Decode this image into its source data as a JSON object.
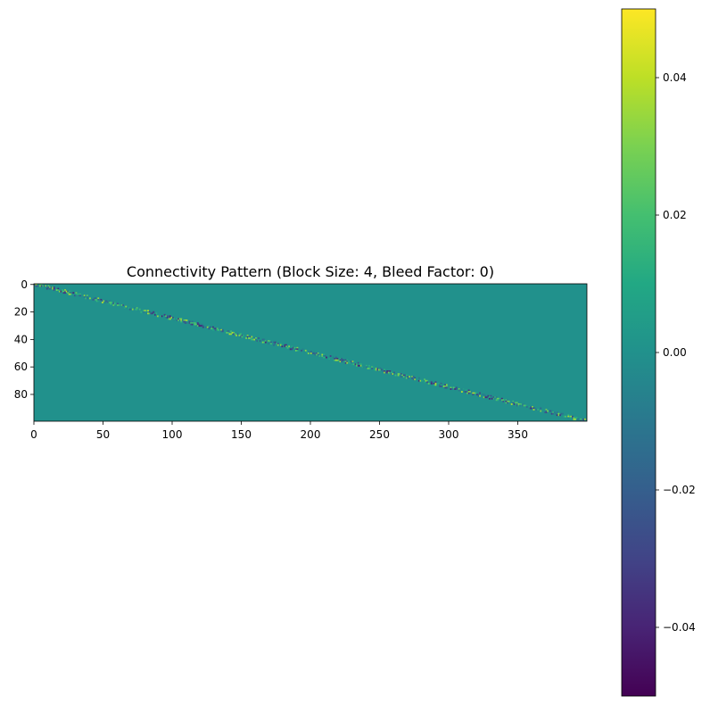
{
  "chart_data": {
    "type": "heatmap",
    "title": "Connectivity Pattern (Block Size: 4, Bleed Factor: 0)",
    "matrix_shape": {
      "rows": 100,
      "cols": 400
    },
    "block_size": 4,
    "bleed_factor": 0,
    "x_ticks": [
      0,
      50,
      100,
      150,
      200,
      250,
      300,
      350
    ],
    "y_ticks": [
      0,
      20,
      40,
      60,
      80
    ],
    "xlim": [
      0,
      400
    ],
    "ylim": [
      100,
      0
    ],
    "colormap": "viridis",
    "background_value": 0.0,
    "colorbar": {
      "range": [
        -0.05,
        0.05
      ],
      "ticks": [
        0.04,
        0.02,
        0.0,
        -0.02,
        -0.04
      ],
      "tick_labels": [
        "0.04",
        "0.02",
        "0.00",
        "−0.02",
        "−0.04"
      ]
    },
    "description_values": {
      "pattern": "block diagonal band from (0,0) to (100,400)",
      "band_values_range": [
        -0.04,
        0.04
      ]
    }
  }
}
